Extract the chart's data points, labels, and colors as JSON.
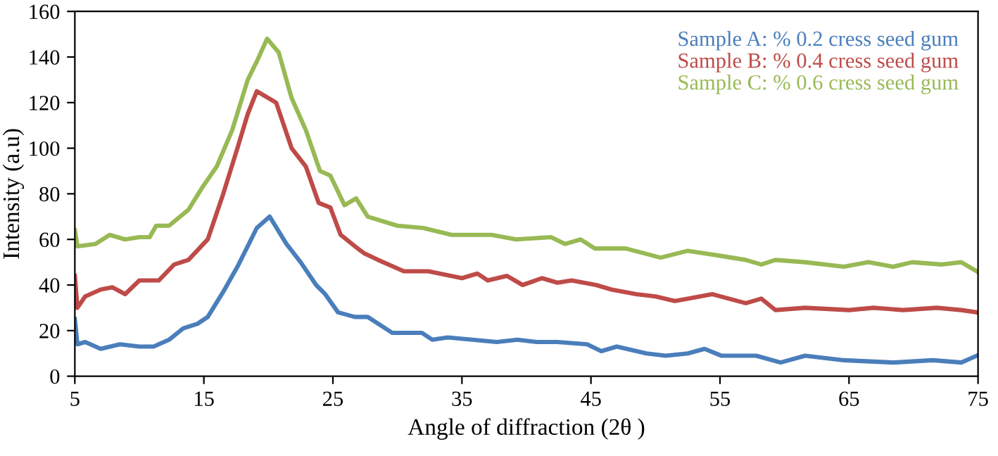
{
  "chart_data": {
    "type": "line",
    "xlabel": "Angle of diffraction (2θ )",
    "ylabel": "Intensity (a.u)",
    "xlim": [
      5,
      75
    ],
    "xticks": [
      5,
      15,
      25,
      35,
      45,
      55,
      65,
      75
    ],
    "ylim": [
      0,
      160
    ],
    "yticks": [
      0,
      20,
      40,
      60,
      80,
      100,
      120,
      140,
      160
    ],
    "grid": false,
    "legend": "top right",
    "marker": "none",
    "line_style": "solid",
    "series": [
      {
        "name": "Sample A: % 0.2 cress seed gum",
        "color": "#4a7ebb",
        "x": [
          5,
          5.2,
          5.8,
          7,
          8.5,
          10,
          11.1,
          12.3,
          13.4,
          14.5,
          15.3,
          16.5,
          17.6,
          19.1,
          20.1,
          21.4,
          22.5,
          23.7,
          24.4,
          25.4,
          26.7,
          27.7,
          29.6,
          31.9,
          32.7,
          33.9,
          35.8,
          37.7,
          39.3,
          40.8,
          42.4,
          44.7,
          45.8,
          47,
          49.3,
          50.8,
          52.5,
          53.8,
          55.1,
          57.8,
          59.7,
          61.6,
          64.6,
          68.4,
          71.5,
          73.7,
          74.9
        ],
        "values": [
          25,
          14,
          15,
          12,
          14,
          13,
          13,
          16,
          21,
          23,
          26,
          37,
          48,
          65,
          70,
          58,
          50,
          40,
          36,
          28,
          26,
          26,
          19,
          19,
          16,
          17,
          16,
          15,
          16,
          15,
          15,
          14,
          11,
          13,
          10,
          9,
          10,
          12,
          9,
          9,
          6,
          9,
          7,
          6,
          7,
          6,
          9
        ]
      },
      {
        "name": "Sample B: % 0.4 cress seed gum",
        "color": "#be4b48",
        "x": [
          5,
          5.2,
          5.8,
          7,
          7.9,
          8.9,
          10,
          11.5,
          12.7,
          13.8,
          15.3,
          16.5,
          17.6,
          18.4,
          19.1,
          20.6,
          21.8,
          22.9,
          23.9,
          24.8,
          25.6,
          26.7,
          27.4,
          28.5,
          30.5,
          32.4,
          35,
          36.2,
          37,
          38.5,
          39.7,
          41.2,
          42.4,
          43.5,
          45.4,
          46.6,
          48.5,
          50,
          51.5,
          52.5,
          54.4,
          57,
          58.2,
          59.3,
          61.6,
          65,
          66.9,
          69.2,
          71.8,
          73.7,
          74.9
        ],
        "values": [
          44,
          30,
          35,
          38,
          39,
          36,
          42,
          42,
          49,
          51,
          60,
          80,
          100,
          115,
          125,
          120,
          100,
          92,
          76,
          74,
          62,
          57,
          54,
          51,
          46,
          46,
          43,
          45,
          42,
          44,
          40,
          43,
          41,
          42,
          40,
          38,
          36,
          35,
          33,
          34,
          36,
          32,
          34,
          29,
          30,
          29,
          30,
          29,
          30,
          29,
          28
        ]
      },
      {
        "name": "Sample C: % 0.6 cress seed gum",
        "color": "#98b954",
        "x": [
          5,
          5.2,
          6.6,
          7.7,
          8.9,
          10,
          10.8,
          11.3,
          12.3,
          13.8,
          14.9,
          16,
          17.2,
          18.4,
          19.1,
          19.9,
          20.8,
          21.8,
          22.9,
          24,
          24.8,
          25.9,
          26.8,
          27.7,
          30,
          32,
          34.2,
          37.3,
          39.2,
          41.9,
          43,
          44.2,
          45.3,
          47.7,
          50.4,
          52.5,
          54.8,
          57,
          58.2,
          59.3,
          61.6,
          64.6,
          66.5,
          68.4,
          69.9,
          72.2,
          73.7,
          74.9
        ],
        "values": [
          64,
          57,
          58,
          62,
          60,
          61,
          61,
          66,
          66,
          73,
          83,
          92,
          108,
          130,
          138,
          148,
          142,
          122,
          108,
          90,
          88,
          75,
          78,
          70,
          66,
          65,
          62,
          62,
          60,
          61,
          58,
          60,
          56,
          56,
          52,
          55,
          53,
          51,
          49,
          51,
          50,
          48,
          50,
          48,
          50,
          49,
          50,
          46
        ]
      }
    ]
  }
}
